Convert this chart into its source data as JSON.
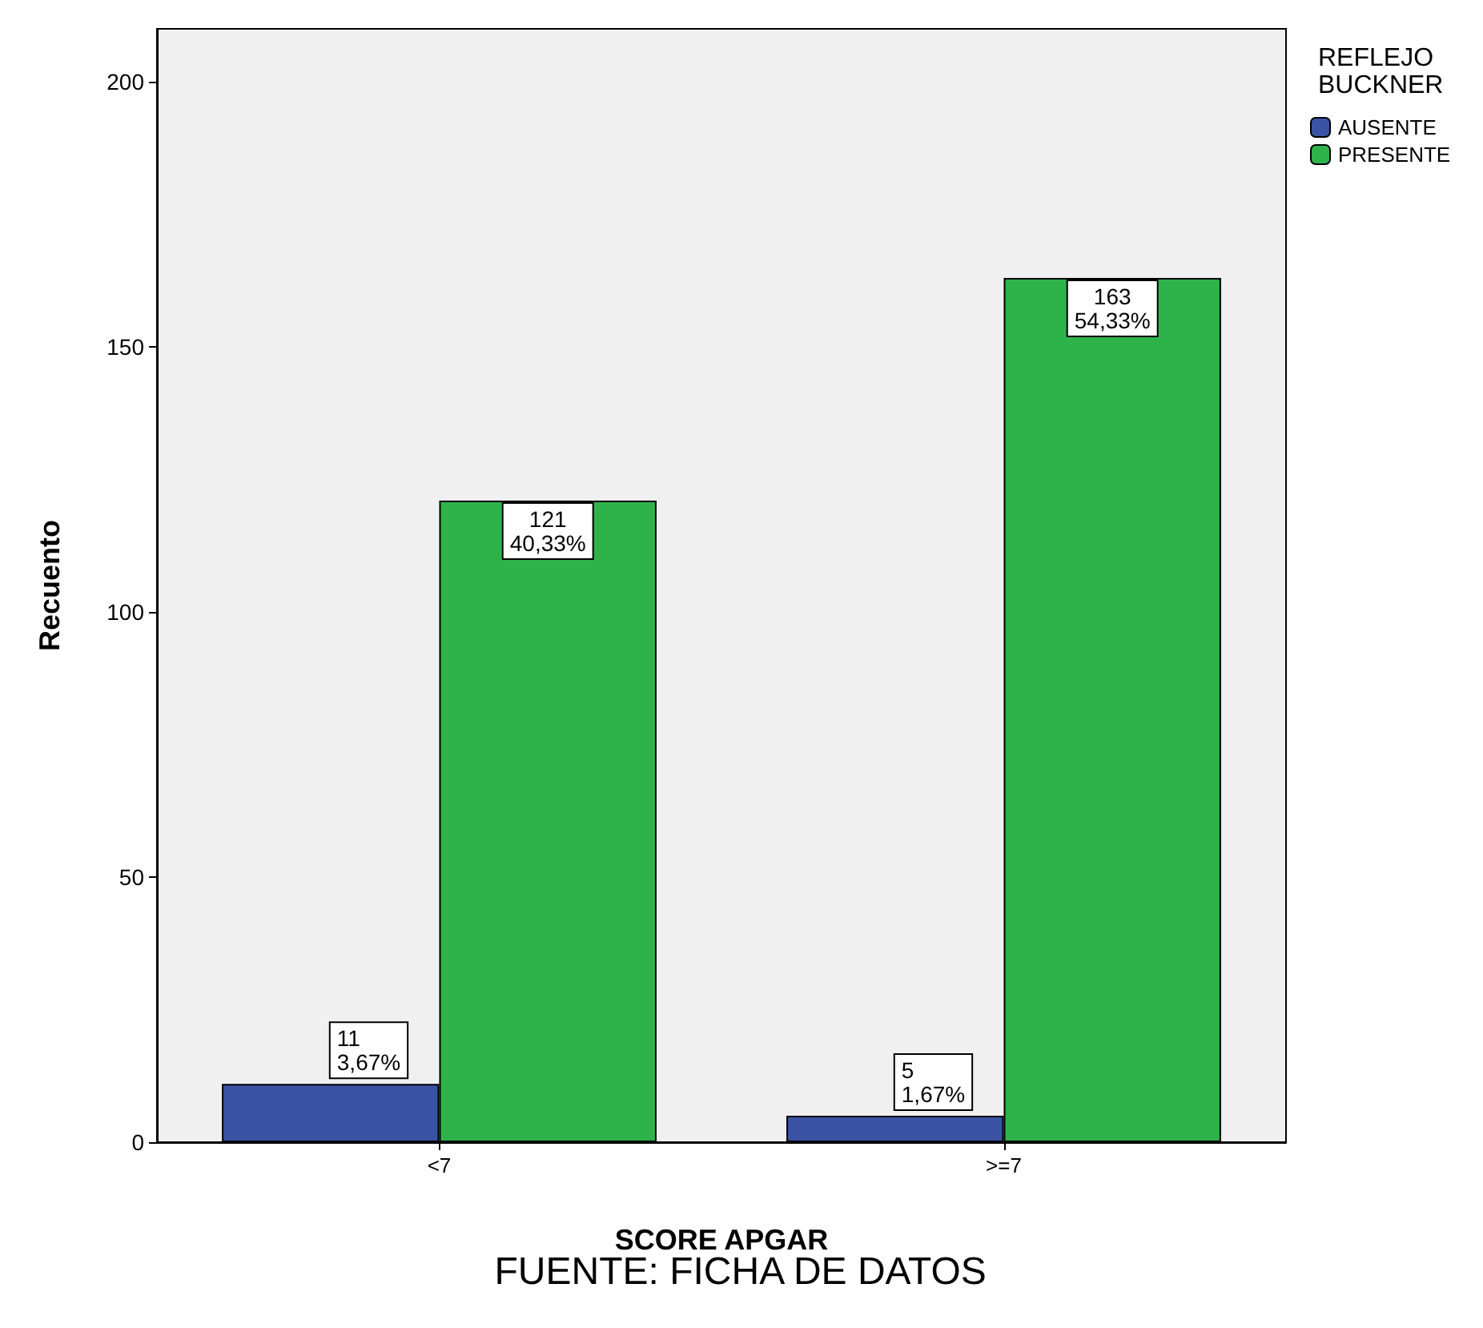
{
  "chart_data": {
    "type": "bar",
    "xlabel": "SCORE APGAR",
    "ylabel": "Recuento",
    "legend_title": "REFLEJO BUCKNER",
    "categories": [
      "<7",
      ">=7"
    ],
    "series": [
      {
        "name": "AUSENTE",
        "color": "#3a53a4",
        "values": [
          11,
          5
        ],
        "value_labels": [
          "11\n3,67%",
          "5\n1,67%"
        ]
      },
      {
        "name": "PRESENTE",
        "color": "#2eb34b",
        "values": [
          121,
          163
        ],
        "value_labels": [
          "121\n40,33%",
          "163\n54,33%"
        ]
      }
    ],
    "ylim": [
      0,
      210
    ],
    "yticks": [
      0,
      50,
      100,
      150,
      200
    ],
    "grid": false,
    "legend": "top right",
    "annotations": [
      "FUENTE: FICHA DE DATOS"
    ]
  }
}
